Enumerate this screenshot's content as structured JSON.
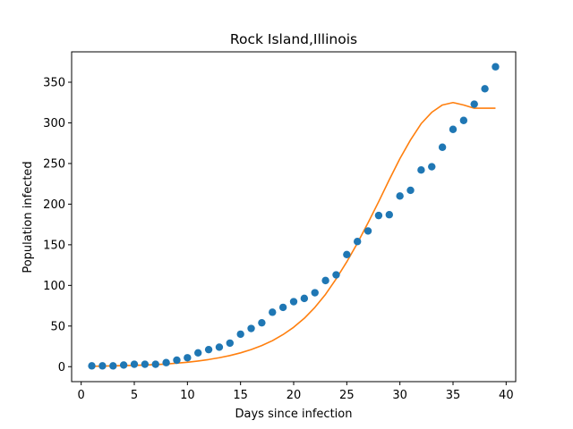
{
  "chart_data": {
    "type": "scatter",
    "title": "Rock Island,Illinois",
    "xlabel": "Days since infection",
    "ylabel": "Population infected",
    "xlim": [
      -0.9,
      40.9
    ],
    "ylim": [
      -18.4,
      387.4
    ],
    "xticks": [
      0,
      5,
      10,
      15,
      20,
      25,
      30,
      35,
      40
    ],
    "yticks": [
      0,
      50,
      100,
      150,
      200,
      250,
      300,
      350
    ],
    "grid": false,
    "legend": "none",
    "series": [
      {
        "kind": "scatter",
        "color": "#1f77b4",
        "x": [
          1,
          2,
          3,
          4,
          5,
          6,
          7,
          8,
          9,
          10,
          11,
          12,
          13,
          14,
          15,
          16,
          17,
          18,
          19,
          20,
          21,
          22,
          23,
          24,
          25,
          26,
          27,
          28,
          29,
          30,
          31,
          32,
          33,
          34,
          35,
          36,
          37,
          38,
          39
        ],
        "y": [
          1,
          1,
          1,
          2,
          3,
          3,
          3,
          5,
          8,
          11,
          17,
          21,
          24,
          29,
          40,
          47,
          54,
          67,
          73,
          80,
          84,
          91,
          106,
          113,
          138,
          154,
          167,
          186,
          187,
          210,
          217,
          242,
          246,
          270,
          292,
          303,
          323,
          342,
          369
        ]
      },
      {
        "kind": "line",
        "color": "#ff7f0e",
        "x": [
          1,
          2,
          3,
          4,
          5,
          6,
          7,
          8,
          9,
          10,
          11,
          12,
          13,
          14,
          15,
          16,
          17,
          18,
          19,
          20,
          21,
          22,
          23,
          24,
          25,
          26,
          27,
          28,
          29,
          30,
          31,
          32,
          33,
          34,
          35,
          36,
          37,
          38,
          39
        ],
        "y": [
          0.5,
          0.7,
          1,
          1.3,
          1.6,
          2,
          2.6,
          3.3,
          4.3,
          5.5,
          7,
          8.8,
          11,
          13.7,
          17,
          21,
          26,
          32,
          39.5,
          48.5,
          59.5,
          73,
          89,
          108,
          129,
          152,
          177,
          203,
          230,
          256,
          279,
          299,
          313,
          322,
          325,
          322,
          318,
          318,
          318
        ]
      }
    ]
  }
}
